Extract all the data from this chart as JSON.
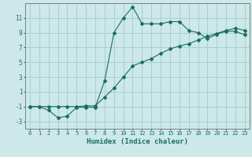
{
  "xlabel": "Humidex (Indice chaleur)",
  "background_color": "#cce8e8",
  "grid_color": "#aacfcf",
  "line_color": "#1a6e5e",
  "xlim": [
    -0.5,
    23.5
  ],
  "ylim": [
    -4,
    13
  ],
  "xticks": [
    0,
    1,
    2,
    3,
    4,
    5,
    6,
    7,
    8,
    9,
    10,
    11,
    12,
    13,
    14,
    15,
    16,
    17,
    18,
    19,
    20,
    21,
    22,
    23
  ],
  "yticks": [
    -3,
    -1,
    1,
    3,
    5,
    7,
    9,
    11
  ],
  "line1_x": [
    0,
    1,
    2,
    3,
    4,
    5,
    6,
    7,
    8,
    9,
    10,
    11,
    12,
    13,
    14,
    15,
    16,
    17,
    18,
    19,
    20,
    21,
    22,
    23
  ],
  "line1_y": [
    -1,
    -1,
    -1.5,
    -2.5,
    -2.3,
    -1.1,
    -1.1,
    -1.1,
    2.5,
    9.0,
    11.0,
    12.5,
    10.2,
    10.2,
    10.2,
    10.5,
    10.5,
    9.3,
    9.0,
    8.2,
    8.8,
    9.2,
    9.2,
    8.7
  ],
  "line2_x": [
    0,
    1,
    2,
    3,
    4,
    5,
    6,
    7,
    8,
    9,
    10,
    11,
    12,
    13,
    14,
    15,
    16,
    17,
    18,
    19,
    20,
    21,
    22,
    23
  ],
  "line2_y": [
    -1.0,
    -1.0,
    -1.0,
    -1.0,
    -1.0,
    -1.0,
    -0.9,
    -0.9,
    0.3,
    1.5,
    3.0,
    4.5,
    5.0,
    5.5,
    6.2,
    6.8,
    7.2,
    7.5,
    8.0,
    8.5,
    8.9,
    9.3,
    9.6,
    9.3
  ],
  "markersize": 2.0
}
